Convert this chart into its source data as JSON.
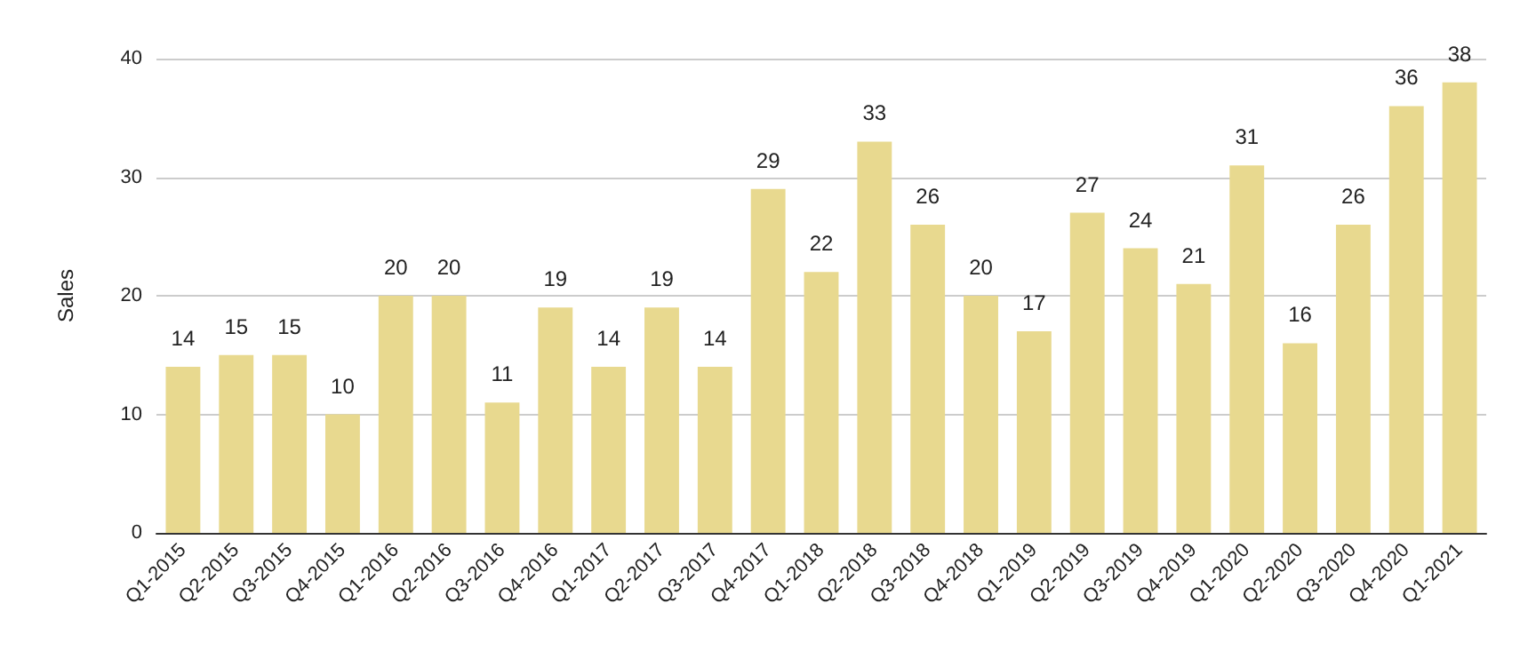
{
  "chart_data": {
    "type": "bar",
    "ylabel": "Sales",
    "categories": [
      "Q1-2015",
      "Q2-2015",
      "Q3-2015",
      "Q4-2015",
      "Q1-2016",
      "Q2-2016",
      "Q3-2016",
      "Q4-2016",
      "Q1-2017",
      "Q2-2017",
      "Q3-2017",
      "Q4-2017",
      "Q1-2018",
      "Q2-2018",
      "Q3-2018",
      "Q4-2018",
      "Q1-2019",
      "Q2-2019",
      "Q3-2019",
      "Q4-2019",
      "Q1-2020",
      "Q2-2020",
      "Q3-2020",
      "Q4-2020",
      "Q1-2021"
    ],
    "values": [
      14,
      15,
      15,
      10,
      20,
      20,
      11,
      19,
      14,
      19,
      14,
      29,
      22,
      33,
      26,
      20,
      17,
      27,
      24,
      21,
      31,
      16,
      26,
      36,
      38
    ],
    "color": "#e8d98f",
    "ylim": [
      0,
      40
    ],
    "yticks": [
      0,
      10,
      20,
      30,
      40
    ],
    "grid": "y",
    "data_labels": true
  }
}
